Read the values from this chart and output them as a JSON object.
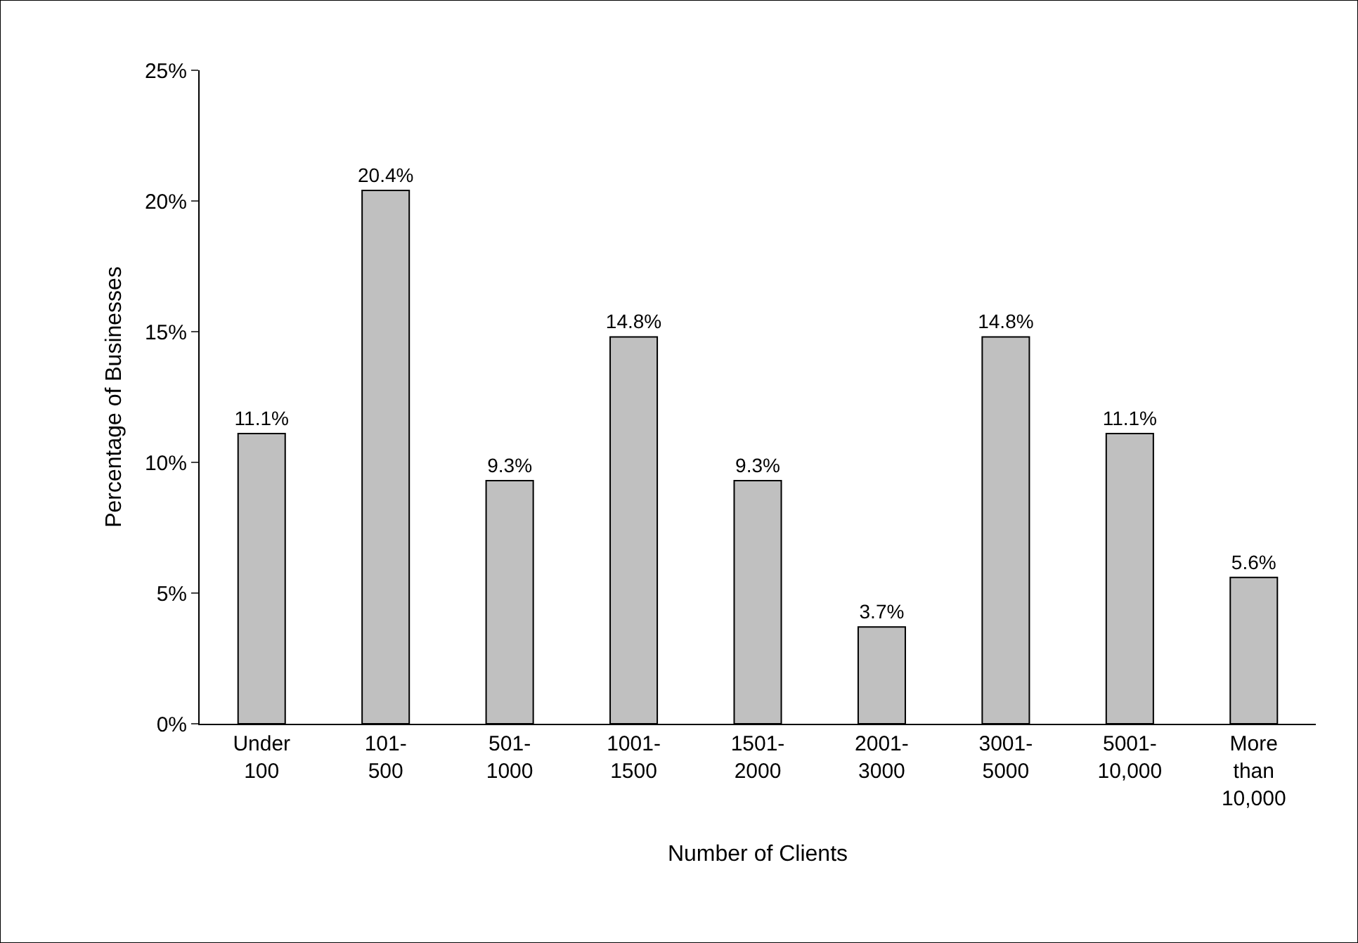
{
  "chart_data": {
    "type": "bar",
    "xlabel": "Number of Clients",
    "ylabel": "Percentage of Businesses",
    "categories": [
      "Under\n100",
      "101-\n500",
      "501-\n1000",
      "1001-\n1500",
      "1501-\n2000",
      "2001-\n3000",
      "3001-\n5000",
      "5001-\n10,000",
      "More\nthan\n10,000"
    ],
    "values": [
      11.1,
      20.4,
      9.3,
      14.8,
      9.3,
      3.7,
      14.8,
      11.1,
      5.6
    ],
    "value_labels": [
      "11.1%",
      "20.4%",
      "9.3%",
      "14.8%",
      "9.3%",
      "3.7%",
      "14.8%",
      "11.1%",
      "5.6%"
    ],
    "color": "#c0c0c0",
    "ylim": [
      0,
      25
    ],
    "yticks": [
      {
        "value": 0,
        "label": "0%"
      },
      {
        "value": 5,
        "label": "5%"
      },
      {
        "value": 10,
        "label": "10%"
      },
      {
        "value": 15,
        "label": "15%"
      },
      {
        "value": 20,
        "label": "20%"
      },
      {
        "value": 25,
        "label": "25%"
      }
    ],
    "legend": false
  }
}
